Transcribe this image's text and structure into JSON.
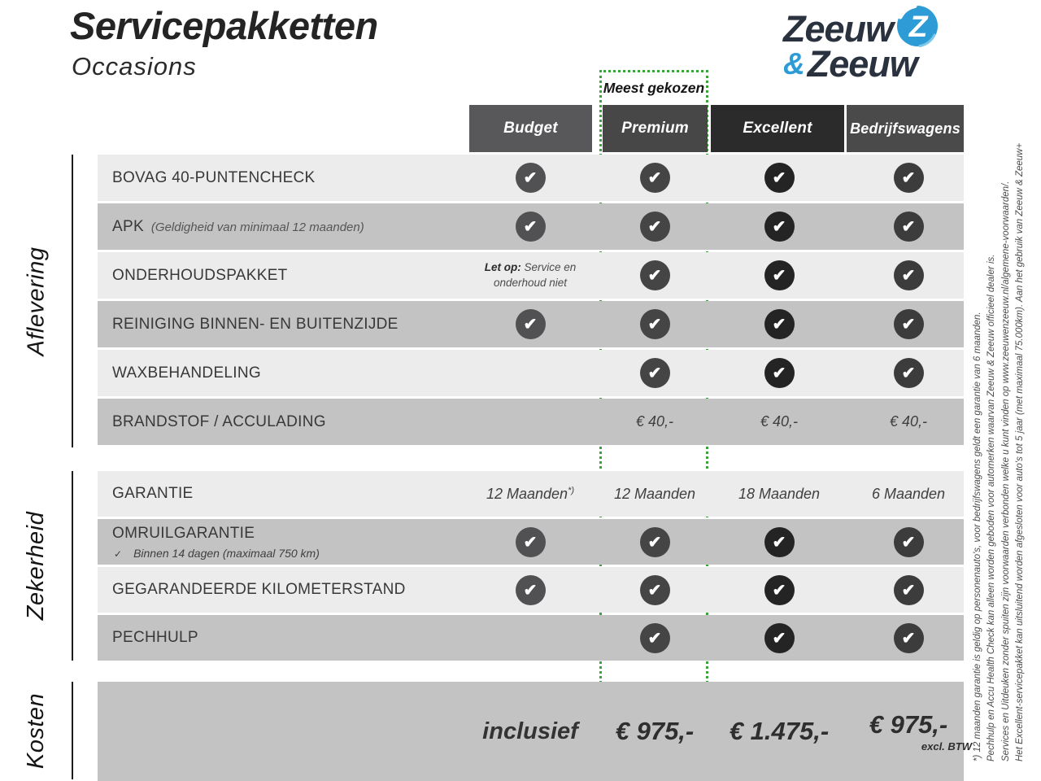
{
  "page": {
    "title": "Servicepakketten",
    "subtitle": "Occasions"
  },
  "logo": {
    "word1": "Zeeuw",
    "amp": "&",
    "word2": "Zeeuw",
    "navy": "#29323e",
    "blue": "#2d9cd6"
  },
  "most_chosen": "Meest gekozen",
  "colors": {
    "row_light": "#ececec",
    "row_dark": "#c3c3c3",
    "green_dotted": "#3aa43a"
  },
  "columns": [
    {
      "label": "Budget",
      "header_bg": "#58585a",
      "check_bg": "#515153"
    },
    {
      "label": "Premium",
      "header_bg": "#474747",
      "check_bg": "#454545"
    },
    {
      "label": "Excellent",
      "header_bg": "#2b2b2b",
      "check_bg": "#242424"
    },
    {
      "label": "Bedrijfswagens",
      "header_bg": "#4a4a4a",
      "check_bg": "#3c3c3c"
    }
  ],
  "check_glyph": "✔",
  "sections": [
    {
      "label": "Aflevering",
      "rows": [
        {
          "label": "BOVAG 40-PUNTENCHECK",
          "cells": [
            {
              "t": "check"
            },
            {
              "t": "check"
            },
            {
              "t": "check"
            },
            {
              "t": "check"
            }
          ]
        },
        {
          "label": "APK",
          "note": "(Geldigheid van minimaal 12 maanden)",
          "cells": [
            {
              "t": "check"
            },
            {
              "t": "check"
            },
            {
              "t": "check"
            },
            {
              "t": "check"
            }
          ]
        },
        {
          "label": "ONDERHOUDSPAKKET",
          "cells": [
            {
              "t": "letop",
              "bold": "Let op:",
              "line1": "Service en",
              "line2": "onderhoud niet"
            },
            {
              "t": "check"
            },
            {
              "t": "check"
            },
            {
              "t": "check"
            }
          ]
        },
        {
          "label": "REINIGING BINNEN- EN BUITENZIJDE",
          "cells": [
            {
              "t": "check"
            },
            {
              "t": "check"
            },
            {
              "t": "check"
            },
            {
              "t": "check"
            }
          ]
        },
        {
          "label": "WAXBEHANDELING",
          "cells": [
            {
              "t": "empty"
            },
            {
              "t": "check"
            },
            {
              "t": "check"
            },
            {
              "t": "check"
            }
          ]
        },
        {
          "label": "BRANDSTOF / ACCULADING",
          "cells": [
            {
              "t": "empty"
            },
            {
              "t": "text",
              "v": "€ 40,-"
            },
            {
              "t": "text",
              "v": "€ 40,-"
            },
            {
              "t": "text",
              "v": "€ 40,-"
            }
          ]
        }
      ]
    },
    {
      "label": "Zekerheid",
      "rows": [
        {
          "label": "GARANTIE",
          "cells": [
            {
              "t": "text",
              "v": "12 Maanden",
              "sup": "*)"
            },
            {
              "t": "text",
              "v": "12 Maanden"
            },
            {
              "t": "text",
              "v": "18 Maanden"
            },
            {
              "t": "text",
              "v": "6 Maanden"
            }
          ]
        },
        {
          "label": "OMRUILGARANTIE",
          "subnote_check": "✓",
          "subnote": "Binnen 14 dagen (maximaal 750 km)",
          "cells": [
            {
              "t": "check"
            },
            {
              "t": "check"
            },
            {
              "t": "check"
            },
            {
              "t": "check"
            }
          ]
        },
        {
          "label": "GEGARANDEERDE KILOMETERSTAND",
          "cells": [
            {
              "t": "check"
            },
            {
              "t": "check"
            },
            {
              "t": "check"
            },
            {
              "t": "check"
            }
          ]
        },
        {
          "label": "PECHHULP",
          "cells": [
            {
              "t": "empty"
            },
            {
              "t": "check"
            },
            {
              "t": "check"
            },
            {
              "t": "check"
            }
          ]
        }
      ]
    },
    {
      "label": "Kosten",
      "rows": [
        {
          "label": "",
          "cells": [
            {
              "t": "big",
              "v": "inclusief",
              "incl": true
            },
            {
              "t": "big",
              "v": "€ 975,-"
            },
            {
              "t": "big",
              "v": "€ 1.475,-"
            },
            {
              "t": "big",
              "v": "€ 975,-",
              "sub": "excl. BTW"
            }
          ]
        }
      ]
    }
  ],
  "footnote": {
    "lines": [
      "Het Excellent-servicepakket kan uitsluitend worden afgesloten voor auto's tot 5 jaar (met maximaal 75.000km). Aan het gebruik van Zeeuw & Zeeuw+",
      "Services en Uitdeuken zonder spuiten zijn voorwaarden verbonden welke u kunt vinden op www.zeeuwenzeeuw.nl/algemene-voorwaarden/.",
      "Pechhulp en Accu Health Check kan alleen worden geboden voor automerken waarvan Zeeuw & Zeeuw officieel dealer is.",
      "*) 12 maanden garantie is geldig op personenauto's, voor bedrijfswagens geldt een garantie van 6 maanden."
    ]
  }
}
